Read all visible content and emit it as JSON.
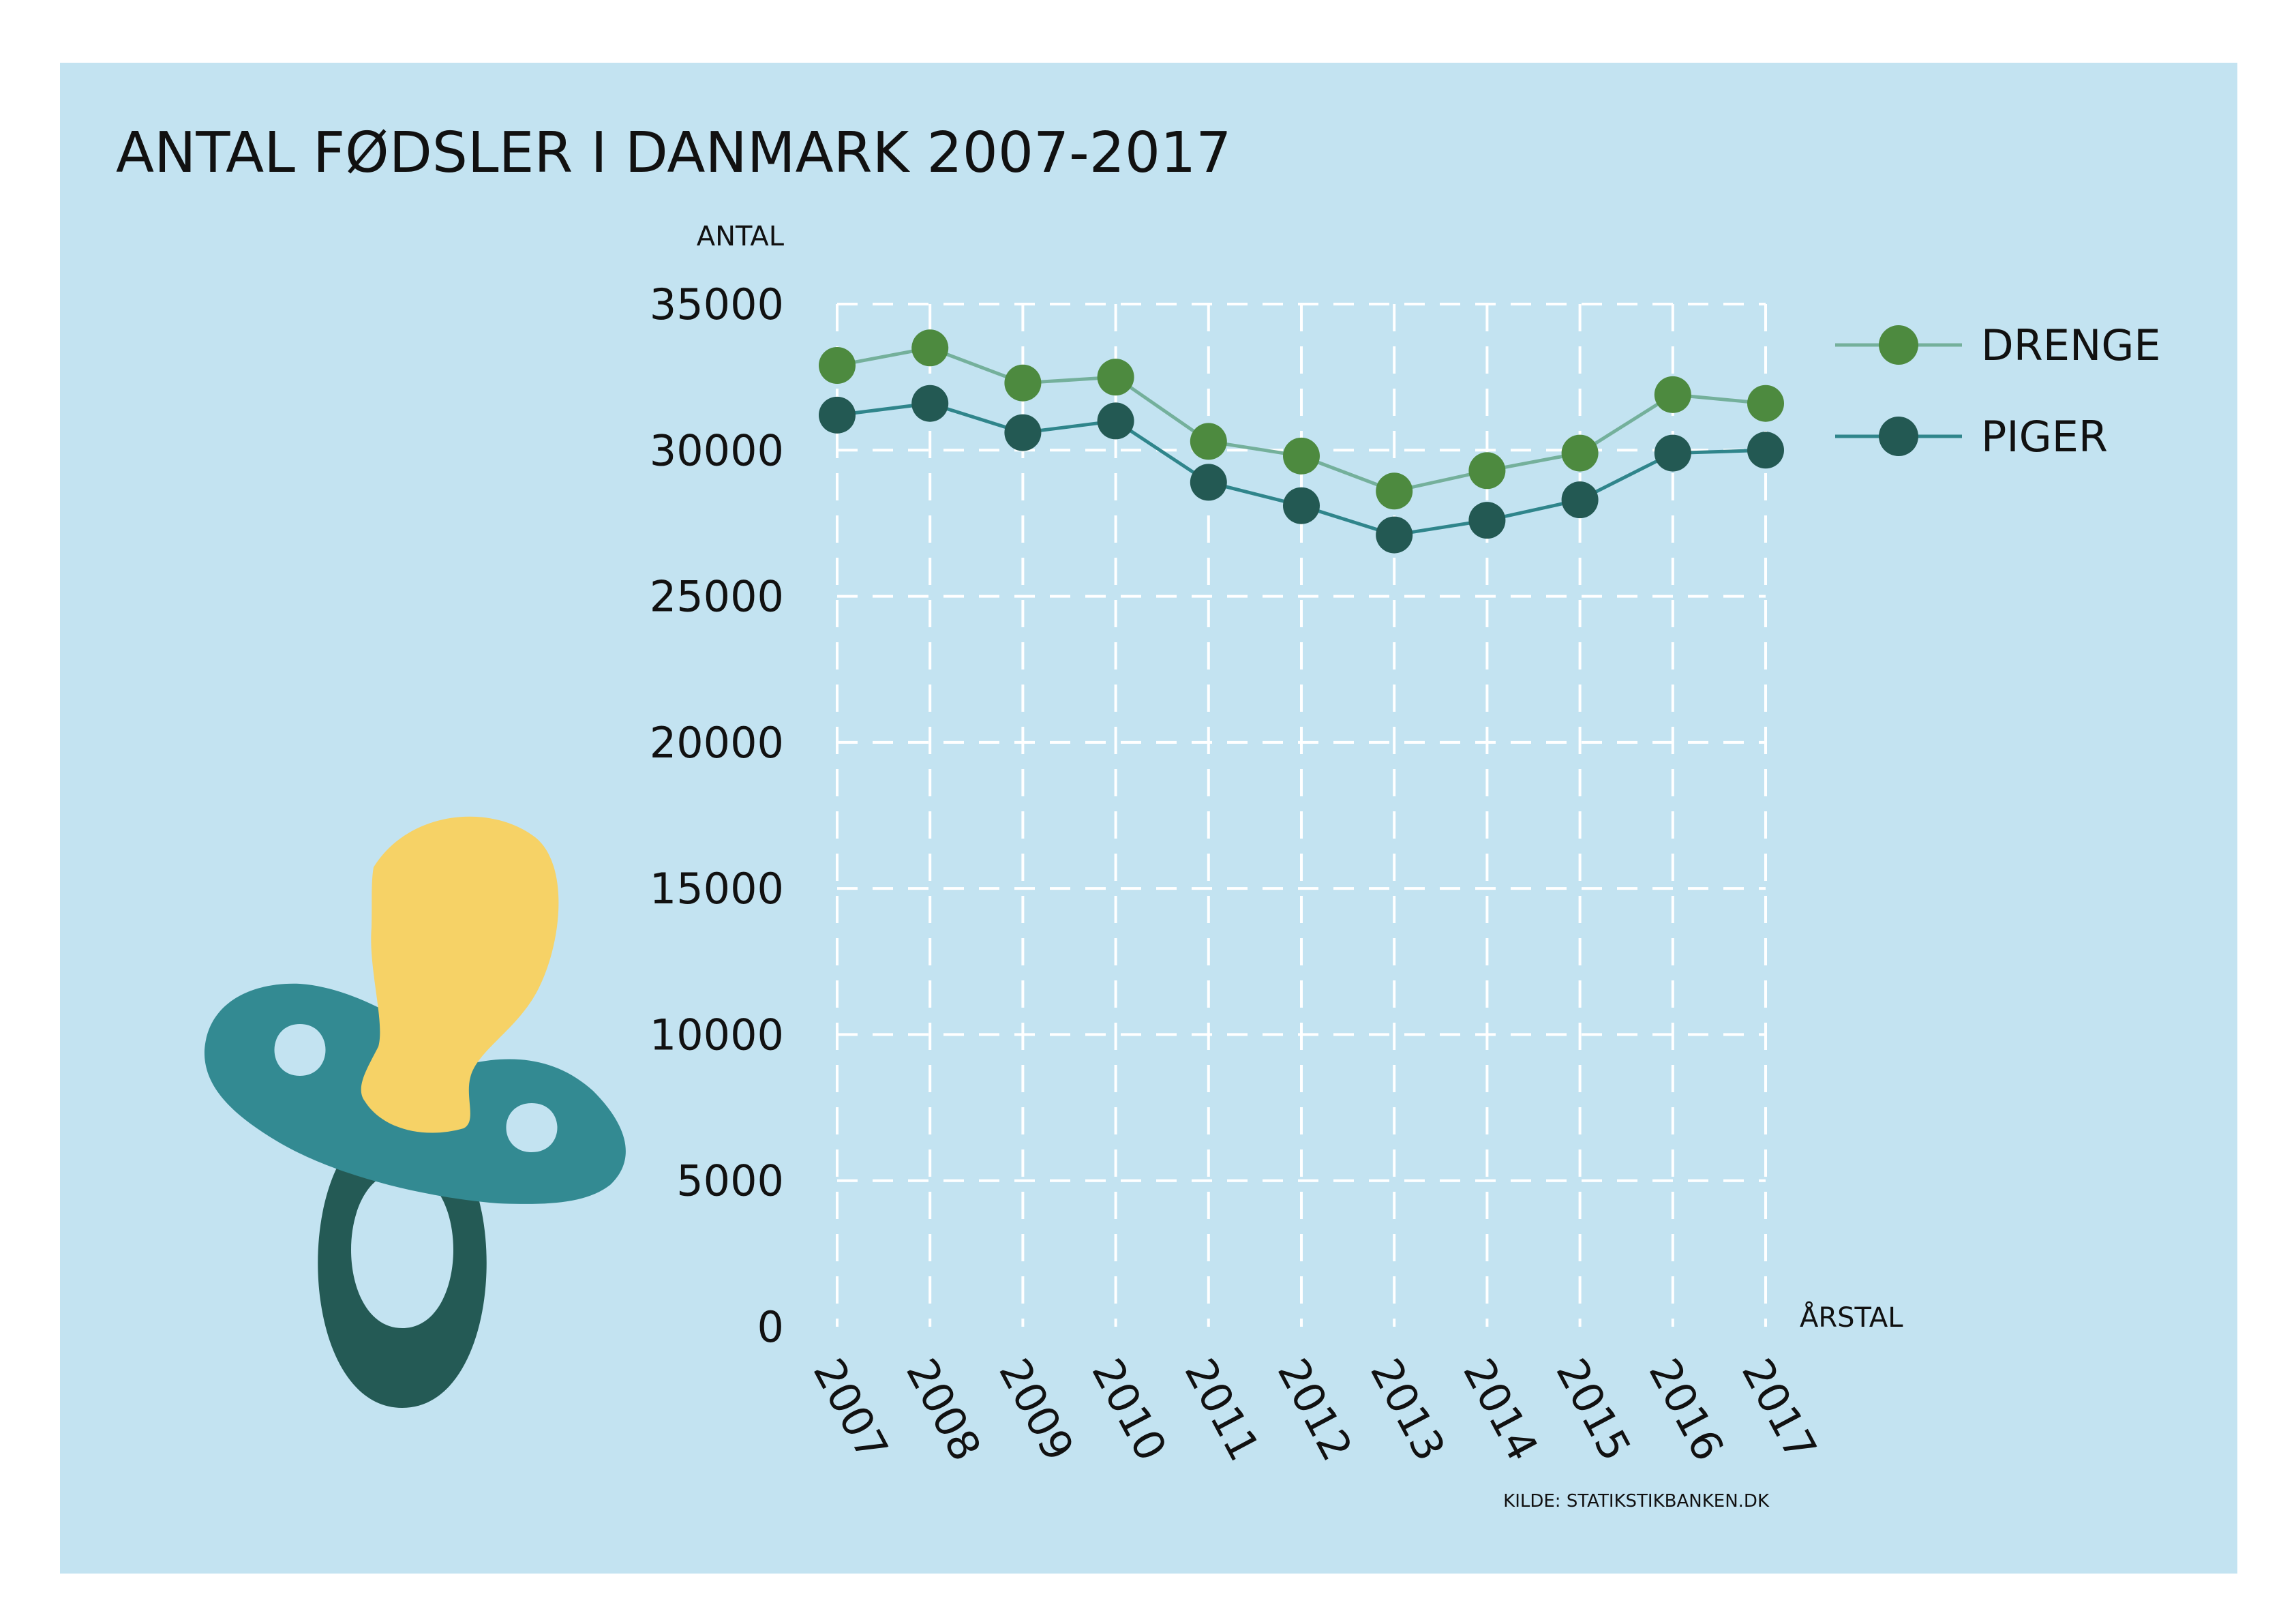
{
  "colors": {
    "panel": "#c3e3f1",
    "drenge_line": "#74b09b",
    "drenge_dot": "#4d8a3f",
    "piger_line": "#2f858b",
    "piger_dot": "#235953",
    "grid": "#ffffff",
    "text": "#111111",
    "pacifier_shield": "#338a92",
    "pacifier_ring": "#245a55",
    "pacifier_nipple": "#f6d266"
  },
  "illustration": {
    "icon": "pacifier-icon"
  },
  "chart_data": {
    "type": "line",
    "title": "ANTAL FØDSLER I DANMARK 2007-2017",
    "ylabel": "ANTAL",
    "xlabel": "ÅRSTAL",
    "source": "KILDE: STATIKSTIKBANKEN.DK",
    "categories": [
      "2007",
      "2008",
      "2009",
      "2010",
      "2011",
      "2012",
      "2013",
      "2014",
      "2015",
      "2016",
      "2017"
    ],
    "y_ticks": [
      "0",
      "5000",
      "10000",
      "15000",
      "20000",
      "25000",
      "30000",
      "35000"
    ],
    "ylim": [
      0,
      35000
    ],
    "grid": true,
    "legend_position": "top-right",
    "series": [
      {
        "name": "DRENGE",
        "values": [
          32900,
          33500,
          32300,
          32500,
          30300,
          29800,
          28600,
          29300,
          29900,
          31900,
          31600
        ]
      },
      {
        "name": "PIGER",
        "values": [
          31200,
          31600,
          30600,
          31000,
          28900,
          28100,
          27100,
          27600,
          28300,
          29900,
          30000
        ]
      }
    ]
  }
}
